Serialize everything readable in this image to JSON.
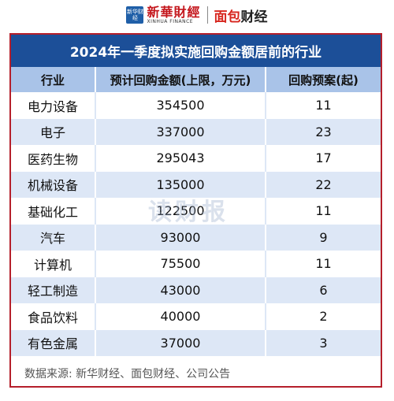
{
  "header": {
    "xinhua_mark": "新华财经",
    "xinhua_cn": "新華財經",
    "xinhua_en": "XINHUA FINANCE",
    "mian_prefix": "面包",
    "mian_suffix": "财经"
  },
  "table": {
    "title": "2024年一季度拟实施回购金额居前的行业",
    "columns": [
      "行业",
      "预计回购金额(上限，万元)",
      "回购预案(起)"
    ],
    "rows": [
      [
        "电力设备",
        "354500",
        "11"
      ],
      [
        "电子",
        "337000",
        "23"
      ],
      [
        "医药生物",
        "295043",
        "17"
      ],
      [
        "机械设备",
        "135000",
        "22"
      ],
      [
        "基础化工",
        "122500",
        "11"
      ],
      [
        "汽车",
        "93000",
        "9"
      ],
      [
        "计算机",
        "75500",
        "11"
      ],
      [
        "轻工制造",
        "43000",
        "6"
      ],
      [
        "食品饮料",
        "40000",
        "2"
      ],
      [
        "有色金属",
        "37000",
        "3"
      ]
    ]
  },
  "watermark": "读财报",
  "source": "数据来源: 新华财经、面包财经、公司公告",
  "colors": {
    "title_bg": "#1c4f98",
    "header_bg": "#a9c3e8",
    "alt_row": "#dde7f6",
    "frame": "#b51f2b"
  }
}
